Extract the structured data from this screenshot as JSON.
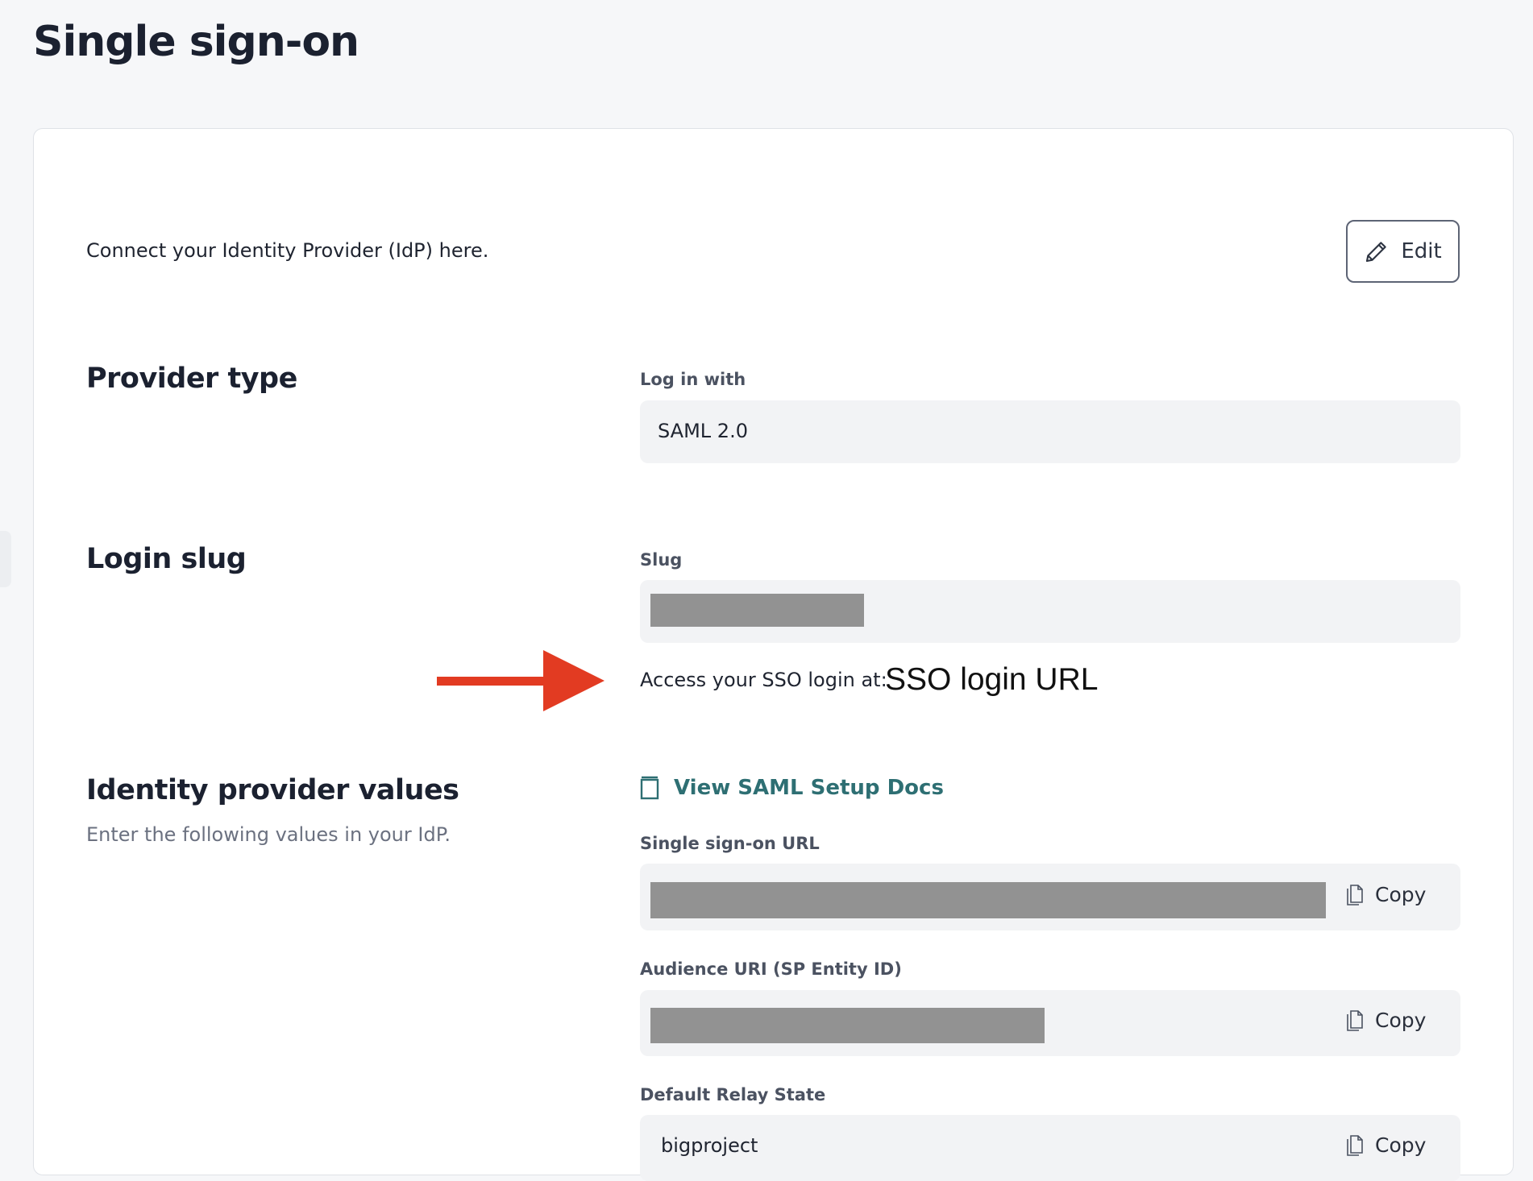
{
  "page": {
    "title": "Single sign-on",
    "intro": "Connect your Identity Provider (IdP) here.",
    "edit_label": "Edit"
  },
  "provider_type": {
    "heading": "Provider type",
    "field_label": "Log in with",
    "value": "SAML 2.0"
  },
  "login_slug": {
    "heading": "Login slug",
    "field_label": "Slug",
    "access_text": "Access your SSO login at:",
    "annotation": "SSO login URL",
    "arrow_color": "#e23b22"
  },
  "idp_values": {
    "heading": "Identity provider values",
    "subtitle": "Enter the following values in your IdP.",
    "docs_link": "View SAML Setup Docs",
    "link_color": "#2e6f73",
    "fields": [
      {
        "label": "Single sign-on URL",
        "copy": "Copy"
      },
      {
        "label": "Audience URI (SP Entity ID)",
        "copy": "Copy"
      },
      {
        "label": "Default Relay State",
        "value": "bigproject",
        "copy": "Copy"
      }
    ]
  }
}
